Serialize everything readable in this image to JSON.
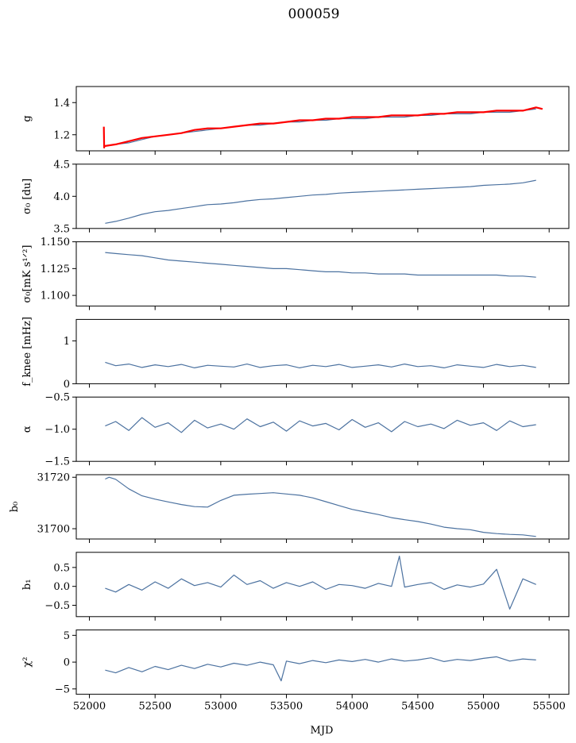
{
  "title": "000059",
  "xlabel": "MJD",
  "colors": {
    "series": "#4c72a0",
    "accent": "#ff0000"
  },
  "chart_data": [
    {
      "type": "line",
      "ylabel": "g",
      "ylim": [
        1.1,
        1.5
      ],
      "yticks": [
        1.2,
        1.4
      ],
      "yticklabels": [
        "1.2",
        "1.4"
      ],
      "xlim": [
        51900,
        55650
      ],
      "series": [
        {
          "color": "#4c72a0",
          "x": [
            52120,
            52200,
            52300,
            52400,
            52500,
            52600,
            52700,
            52800,
            52900,
            53000,
            53100,
            53200,
            53300,
            53400,
            53500,
            53600,
            53700,
            53800,
            53900,
            54000,
            54100,
            54200,
            54300,
            54400,
            54500,
            54600,
            54700,
            54800,
            54900,
            55000,
            55100,
            55200,
            55300,
            55400
          ],
          "y": [
            1.13,
            1.14,
            1.15,
            1.17,
            1.19,
            1.2,
            1.21,
            1.22,
            1.23,
            1.24,
            1.25,
            1.26,
            1.26,
            1.27,
            1.28,
            1.28,
            1.29,
            1.29,
            1.3,
            1.3,
            1.3,
            1.31,
            1.31,
            1.31,
            1.32,
            1.32,
            1.33,
            1.33,
            1.33,
            1.34,
            1.34,
            1.34,
            1.35,
            1.36
          ]
        },
        {
          "color": "#ff0000",
          "x": [
            52110,
            52112,
            52114,
            52120,
            52200,
            52300,
            52400,
            52500,
            52600,
            52700,
            52800,
            52900,
            53000,
            53100,
            53200,
            53300,
            53400,
            53500,
            53600,
            53700,
            53800,
            53900,
            54000,
            54100,
            54200,
            54300,
            54400,
            54500,
            54600,
            54700,
            54800,
            54900,
            55000,
            55100,
            55200,
            55300,
            55400,
            55450
          ],
          "y": [
            1.25,
            1.12,
            1.13,
            1.13,
            1.14,
            1.16,
            1.18,
            1.19,
            1.2,
            1.21,
            1.23,
            1.24,
            1.24,
            1.25,
            1.26,
            1.27,
            1.27,
            1.28,
            1.29,
            1.29,
            1.3,
            1.3,
            1.31,
            1.31,
            1.31,
            1.32,
            1.32,
            1.32,
            1.33,
            1.33,
            1.34,
            1.34,
            1.34,
            1.35,
            1.35,
            1.35,
            1.37,
            1.36
          ]
        }
      ]
    },
    {
      "type": "line",
      "ylabel": "σ₀ [du]",
      "ylim": [
        3.5,
        4.5
      ],
      "yticks": [
        3.5,
        4.0,
        4.5
      ],
      "yticklabels": [
        "3.5",
        "4.0",
        "4.5"
      ],
      "xlim": [
        51900,
        55650
      ],
      "series": [
        {
          "color": "#4c72a0",
          "x": [
            52120,
            52200,
            52300,
            52400,
            52500,
            52600,
            52700,
            52800,
            52900,
            53000,
            53100,
            53200,
            53300,
            53400,
            53500,
            53600,
            53700,
            53800,
            53900,
            54000,
            54100,
            54200,
            54300,
            54400,
            54500,
            54600,
            54700,
            54800,
            54900,
            55000,
            55100,
            55200,
            55300,
            55400
          ],
          "y": [
            3.58,
            3.61,
            3.66,
            3.72,
            3.76,
            3.78,
            3.81,
            3.84,
            3.87,
            3.88,
            3.9,
            3.93,
            3.95,
            3.96,
            3.98,
            4.0,
            4.02,
            4.03,
            4.05,
            4.06,
            4.07,
            4.08,
            4.09,
            4.1,
            4.11,
            4.12,
            4.13,
            4.14,
            4.15,
            4.17,
            4.18,
            4.19,
            4.21,
            4.25
          ]
        }
      ]
    },
    {
      "type": "line",
      "ylabel": "σ₀[mK s¹ᐟ²]",
      "ylim": [
        1.09,
        1.15
      ],
      "yticks": [
        1.1,
        1.125,
        1.15
      ],
      "yticklabels": [
        "1.100",
        "1.125",
        "1.150"
      ],
      "xlim": [
        51900,
        55650
      ],
      "series": [
        {
          "color": "#4c72a0",
          "x": [
            52120,
            52200,
            52300,
            52400,
            52500,
            52600,
            52700,
            52800,
            52900,
            53000,
            53100,
            53200,
            53300,
            53400,
            53500,
            53600,
            53700,
            53800,
            53900,
            54000,
            54100,
            54200,
            54300,
            54400,
            54500,
            54600,
            54700,
            54800,
            54900,
            55000,
            55100,
            55200,
            55300,
            55400
          ],
          "y": [
            1.14,
            1.139,
            1.138,
            1.137,
            1.135,
            1.133,
            1.132,
            1.131,
            1.13,
            1.129,
            1.128,
            1.127,
            1.126,
            1.125,
            1.125,
            1.124,
            1.123,
            1.122,
            1.122,
            1.121,
            1.121,
            1.12,
            1.12,
            1.12,
            1.119,
            1.119,
            1.119,
            1.119,
            1.119,
            1.119,
            1.119,
            1.118,
            1.118,
            1.117
          ]
        }
      ]
    },
    {
      "type": "line",
      "ylabel": "f_knee [mHz]",
      "ylim": [
        0,
        1.5
      ],
      "yticks": [
        0,
        1
      ],
      "yticklabels": [
        "0",
        "1"
      ],
      "xlim": [
        51900,
        55650
      ],
      "series": [
        {
          "color": "#4c72a0",
          "x": [
            52120,
            52200,
            52300,
            52400,
            52500,
            52600,
            52700,
            52800,
            52900,
            53000,
            53100,
            53200,
            53300,
            53400,
            53500,
            53600,
            53700,
            53800,
            53900,
            54000,
            54100,
            54200,
            54300,
            54400,
            54500,
            54600,
            54700,
            54800,
            54900,
            55000,
            55100,
            55200,
            55300,
            55400
          ],
          "y": [
            0.5,
            0.42,
            0.46,
            0.38,
            0.44,
            0.4,
            0.45,
            0.37,
            0.43,
            0.41,
            0.39,
            0.46,
            0.38,
            0.42,
            0.44,
            0.37,
            0.43,
            0.4,
            0.45,
            0.38,
            0.41,
            0.44,
            0.39,
            0.46,
            0.4,
            0.42,
            0.37,
            0.44,
            0.41,
            0.38,
            0.45,
            0.4,
            0.43,
            0.38
          ]
        }
      ]
    },
    {
      "type": "line",
      "ylabel": "α",
      "ylim": [
        -1.5,
        -0.5
      ],
      "yticks": [
        -1.5,
        -1.0,
        -0.5
      ],
      "yticklabels": [
        "−1.5",
        "−1.0",
        "−0.5"
      ],
      "xlim": [
        51900,
        55650
      ],
      "series": [
        {
          "color": "#4c72a0",
          "x": [
            52120,
            52200,
            52300,
            52400,
            52500,
            52600,
            52700,
            52800,
            52900,
            53000,
            53100,
            53200,
            53300,
            53400,
            53500,
            53600,
            53700,
            53800,
            53900,
            54000,
            54100,
            54200,
            54300,
            54400,
            54500,
            54600,
            54700,
            54800,
            54900,
            55000,
            55100,
            55200,
            55300,
            55400
          ],
          "y": [
            -0.95,
            -0.88,
            -1.02,
            -0.82,
            -0.97,
            -0.9,
            -1.05,
            -0.86,
            -0.98,
            -0.92,
            -1.0,
            -0.84,
            -0.96,
            -0.89,
            -1.03,
            -0.87,
            -0.95,
            -0.91,
            -1.01,
            -0.85,
            -0.97,
            -0.9,
            -1.04,
            -0.88,
            -0.96,
            -0.92,
            -0.99,
            -0.86,
            -0.94,
            -0.9,
            -1.02,
            -0.87,
            -0.96,
            -0.93
          ]
        }
      ]
    },
    {
      "type": "line",
      "ylabel": "b₀",
      "ylim": [
        31696,
        31721
      ],
      "yticks": [
        31700,
        31720
      ],
      "yticklabels": [
        "31700",
        "31720"
      ],
      "xlim": [
        51900,
        55650
      ],
      "series": [
        {
          "color": "#4c72a0",
          "x": [
            52120,
            52150,
            52200,
            52300,
            52400,
            52500,
            52600,
            52700,
            52800,
            52900,
            53000,
            53100,
            53200,
            53300,
            53400,
            53500,
            53600,
            53700,
            53800,
            53900,
            54000,
            54100,
            54200,
            54300,
            54400,
            54500,
            54600,
            54700,
            54800,
            54900,
            55000,
            55100,
            55200,
            55300,
            55400
          ],
          "y": [
            31719.3,
            31720.0,
            31719.2,
            31715.5,
            31712.8,
            31711.5,
            31710.4,
            31709.4,
            31708.6,
            31708.4,
            31711.0,
            31713.0,
            31713.4,
            31713.7,
            31714.0,
            31713.5,
            31713.0,
            31712.0,
            31710.5,
            31709.0,
            31707.5,
            31706.5,
            31705.5,
            31704.3,
            31703.5,
            31702.8,
            31701.8,
            31700.6,
            31700.0,
            31699.6,
            31698.6,
            31698.1,
            31697.8,
            31697.6,
            31697.0
          ]
        }
      ]
    },
    {
      "type": "line",
      "ylabel": "b₁",
      "ylim": [
        -0.8,
        0.9
      ],
      "yticks": [
        -0.5,
        0.0,
        0.5
      ],
      "yticklabels": [
        "−0.5",
        "0.0",
        "0.5"
      ],
      "xlim": [
        51900,
        55650
      ],
      "series": [
        {
          "color": "#4c72a0",
          "x": [
            52120,
            52200,
            52300,
            52400,
            52500,
            52600,
            52700,
            52800,
            52900,
            53000,
            53100,
            53200,
            53300,
            53400,
            53500,
            53600,
            53700,
            53800,
            53900,
            54000,
            54100,
            54200,
            54300,
            54360,
            54400,
            54500,
            54600,
            54700,
            54800,
            54900,
            55000,
            55100,
            55200,
            55300,
            55400
          ],
          "y": [
            -0.05,
            -0.15,
            0.05,
            -0.1,
            0.12,
            -0.05,
            0.2,
            0.02,
            0.1,
            -0.02,
            0.3,
            0.05,
            0.15,
            -0.05,
            0.1,
            0.0,
            0.12,
            -0.08,
            0.05,
            0.02,
            -0.05,
            0.08,
            0.0,
            0.8,
            -0.02,
            0.05,
            0.1,
            -0.08,
            0.04,
            -0.02,
            0.06,
            0.45,
            -0.6,
            0.2,
            0.05
          ]
        }
      ]
    },
    {
      "type": "line",
      "ylabel": "χ²",
      "ylim": [
        -6,
        6
      ],
      "yticks": [
        -5,
        0,
        5
      ],
      "yticklabels": [
        "−5",
        "0",
        "5"
      ],
      "xlim": [
        51900,
        55650
      ],
      "series": [
        {
          "color": "#4c72a0",
          "x": [
            52120,
            52200,
            52300,
            52400,
            52500,
            52600,
            52700,
            52800,
            52900,
            53000,
            53100,
            53200,
            53300,
            53400,
            53460,
            53500,
            53600,
            53700,
            53800,
            53900,
            54000,
            54100,
            54200,
            54300,
            54400,
            54500,
            54600,
            54700,
            54800,
            54900,
            55000,
            55100,
            55200,
            55300,
            55400
          ],
          "y": [
            -1.5,
            -2.0,
            -1.0,
            -1.8,
            -0.8,
            -1.4,
            -0.6,
            -1.2,
            -0.4,
            -0.9,
            -0.2,
            -0.6,
            0.0,
            -0.5,
            -3.5,
            0.2,
            -0.3,
            0.3,
            -0.1,
            0.4,
            0.1,
            0.5,
            0.0,
            0.6,
            0.2,
            0.4,
            0.8,
            0.1,
            0.5,
            0.3,
            0.7,
            1.0,
            0.2,
            0.6,
            0.4
          ]
        }
      ]
    }
  ],
  "xaxis": {
    "ticks": [
      52000,
      52500,
      53000,
      53500,
      54000,
      54500,
      55000,
      55500
    ],
    "ticklabels": [
      "52000",
      "52500",
      "53000",
      "53500",
      "54000",
      "54500",
      "55000",
      "55500"
    ]
  }
}
